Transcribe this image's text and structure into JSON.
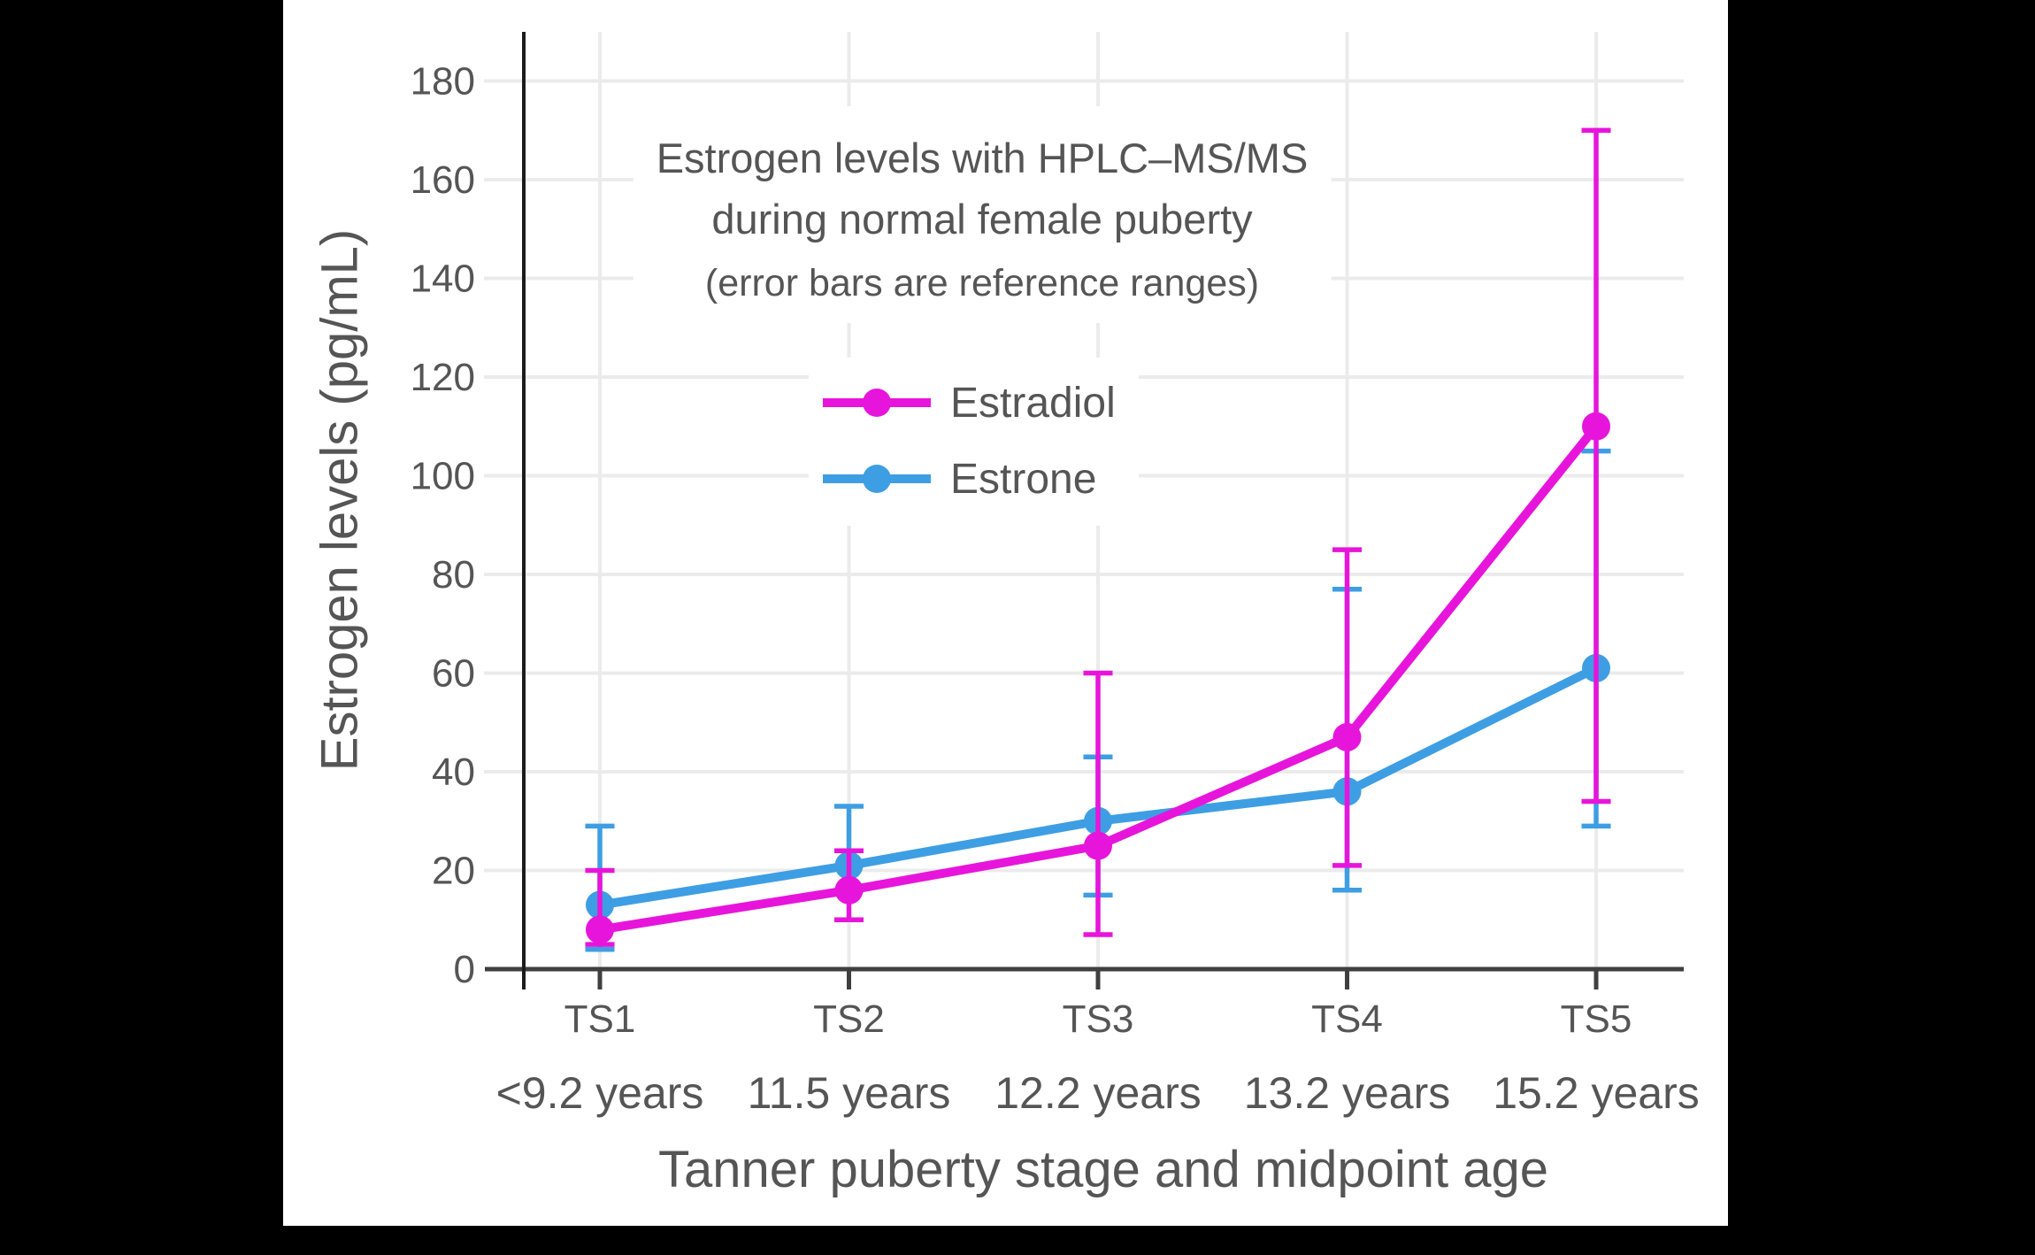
{
  "chart_data": {
    "type": "line",
    "title_line1": "Estrogen levels with HPLC–MS/MS",
    "title_line2": "during normal female puberty",
    "subtitle": "(error bars are reference ranges)",
    "xlabel": "Tanner puberty stage and midpoint age",
    "ylabel": "Estrogen levels (pg/mL)",
    "categories": [
      "TS1",
      "TS2",
      "TS3",
      "TS4",
      "TS5"
    ],
    "category_ages": [
      "<9.2 years",
      "11.5 years",
      "12.2 years",
      "13.2 years",
      "15.2 years"
    ],
    "y_ticks": [
      0,
      20,
      40,
      60,
      80,
      100,
      120,
      140,
      160,
      180
    ],
    "ylim": [
      0,
      190
    ],
    "grid": true,
    "legend_position": "upper-center-below-title",
    "error_bar_meaning": "reference ranges",
    "series": [
      {
        "name": "Estrone",
        "color": "#3E9EE3",
        "values": [
          13,
          21,
          30,
          36,
          61
        ],
        "err_low": [
          4,
          16,
          15,
          16,
          29
        ],
        "err_high": [
          29,
          33,
          43,
          77,
          105
        ]
      },
      {
        "name": "Estradiol",
        "color": "#E715DB",
        "values": [
          8,
          16,
          25,
          47,
          110
        ],
        "err_low": [
          5,
          10,
          7,
          21,
          34
        ],
        "err_high": [
          20,
          24,
          60,
          85,
          170
        ]
      }
    ],
    "legend_order": [
      "Estradiol",
      "Estrone"
    ],
    "style_colors": {
      "text": "#555555",
      "axis_line": "#3f3f3f",
      "spine": "#1c1c1c",
      "gridline": "#ebebeb",
      "plot_background": "#ffffff",
      "page_background": "#000000"
    }
  }
}
